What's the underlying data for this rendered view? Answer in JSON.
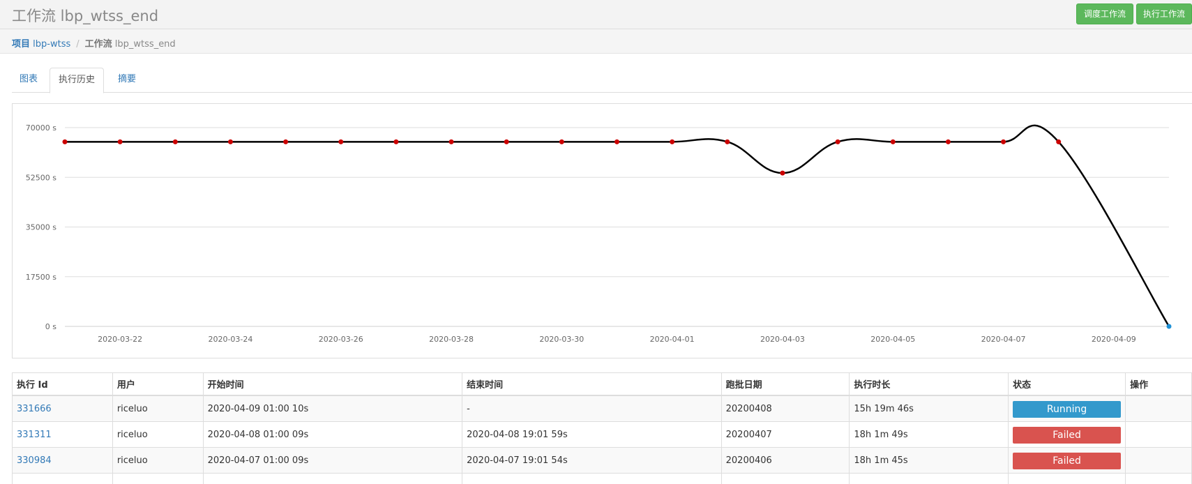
{
  "header": {
    "title": "工作流 lbp_wtss_end",
    "schedule_button": "调度工作流",
    "execute_button": "执行工作流"
  },
  "breadcrumb": {
    "project_label": "项目",
    "project_name": "lbp-wtss",
    "separator": "/",
    "flow_label": "工作流",
    "flow_name": "lbp_wtss_end"
  },
  "tabs": [
    {
      "label": "图表"
    },
    {
      "label": "执行历史",
      "active": true
    },
    {
      "label": "摘要"
    }
  ],
  "chart_data": {
    "type": "line",
    "title": "",
    "xlabel": "",
    "ylabel": "",
    "ylim": [
      0,
      70000
    ],
    "yticks": [
      "70000 s",
      "52500 s",
      "35000 s",
      "17500 s",
      "0 s"
    ],
    "ytick_values": [
      70000,
      52500,
      35000,
      17500,
      0
    ],
    "xticks": [
      "2020-03-22",
      "2020-03-24",
      "2020-03-26",
      "2020-03-28",
      "2020-03-30",
      "2020-04-01",
      "2020-04-03",
      "2020-04-05",
      "2020-04-07",
      "2020-04-09"
    ],
    "xlim": [
      "2020-03-21",
      "2020-04-10"
    ],
    "grid": true,
    "series": [
      {
        "color": "#000000",
        "point_color": "#cc0000",
        "points": [
          {
            "x": "2020-03-21",
            "y": 65000
          },
          {
            "x": "2020-03-22",
            "y": 65000
          },
          {
            "x": "2020-03-23",
            "y": 65000
          },
          {
            "x": "2020-03-24",
            "y": 65000
          },
          {
            "x": "2020-03-25",
            "y": 65000
          },
          {
            "x": "2020-03-26",
            "y": 65000
          },
          {
            "x": "2020-03-27",
            "y": 65000
          },
          {
            "x": "2020-03-28",
            "y": 65000
          },
          {
            "x": "2020-03-29",
            "y": 65000
          },
          {
            "x": "2020-03-30",
            "y": 65000
          },
          {
            "x": "2020-03-31",
            "y": 65000
          },
          {
            "x": "2020-04-01",
            "y": 65000
          },
          {
            "x": "2020-04-02",
            "y": 65000
          },
          {
            "x": "2020-04-03",
            "y": 54000
          },
          {
            "x": "2020-04-04",
            "y": 65000
          },
          {
            "x": "2020-04-05",
            "y": 65000
          },
          {
            "x": "2020-04-06",
            "y": 65000
          },
          {
            "x": "2020-04-07",
            "y": 65000
          },
          {
            "x": "2020-04-08",
            "y": 65000
          },
          {
            "x": "2020-04-10",
            "y": 0,
            "color": "#1e90d6"
          }
        ]
      }
    ]
  },
  "table": {
    "columns": [
      "执行 Id",
      "用户",
      "开始时间",
      "结束时间",
      "跑批日期",
      "执行时长",
      "状态",
      "操作"
    ],
    "rows": [
      {
        "id": "331666",
        "user": "riceluo",
        "start": "2020-04-09 01:00 10s",
        "end": "-",
        "batch_date": "20200408",
        "duration": "15h 19m 46s",
        "status": "Running",
        "status_color": "#3399cc",
        "action": ""
      },
      {
        "id": "331311",
        "user": "riceluo",
        "start": "2020-04-08 01:00 09s",
        "end": "2020-04-08 19:01 59s",
        "batch_date": "20200407",
        "duration": "18h 1m 49s",
        "status": "Failed",
        "status_color": "#d9534f",
        "action": ""
      },
      {
        "id": "330984",
        "user": "riceluo",
        "start": "2020-04-07 01:00 09s",
        "end": "2020-04-07 19:01 54s",
        "batch_date": "20200406",
        "duration": "18h 1m 45s",
        "status": "Failed",
        "status_color": "#d9534f",
        "action": ""
      }
    ]
  }
}
